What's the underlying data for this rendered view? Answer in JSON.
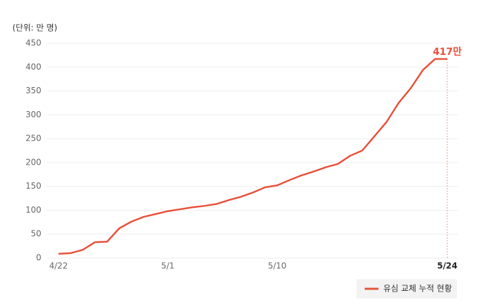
{
  "chart_data": {
    "type": "line",
    "unit_label": "(단위: 만 명)",
    "categories": [
      "4/22",
      null,
      null,
      null,
      null,
      null,
      null,
      null,
      null,
      "5/1",
      null,
      null,
      null,
      null,
      null,
      null,
      null,
      null,
      "5/10",
      null,
      null,
      null,
      null,
      null,
      null,
      null,
      null,
      null,
      null,
      null,
      null,
      null,
      "5/24"
    ],
    "series": [
      {
        "name": "유심 교체 누적 현황",
        "color": "#e8503a",
        "values": [
          8.6,
          10,
          17,
          33,
          34,
          62,
          76,
          86,
          92,
          98,
          102,
          106,
          109,
          113,
          121,
          128,
          137,
          148,
          152,
          163,
          173,
          181,
          190,
          197,
          214,
          225,
          255,
          285,
          325,
          356,
          394,
          417,
          417
        ]
      }
    ],
    "annotation": "417만",
    "ylim": [
      0,
      450
    ],
    "yticks": [
      0,
      50,
      100,
      150,
      200,
      250,
      300,
      350,
      400,
      450
    ],
    "grid": true
  }
}
